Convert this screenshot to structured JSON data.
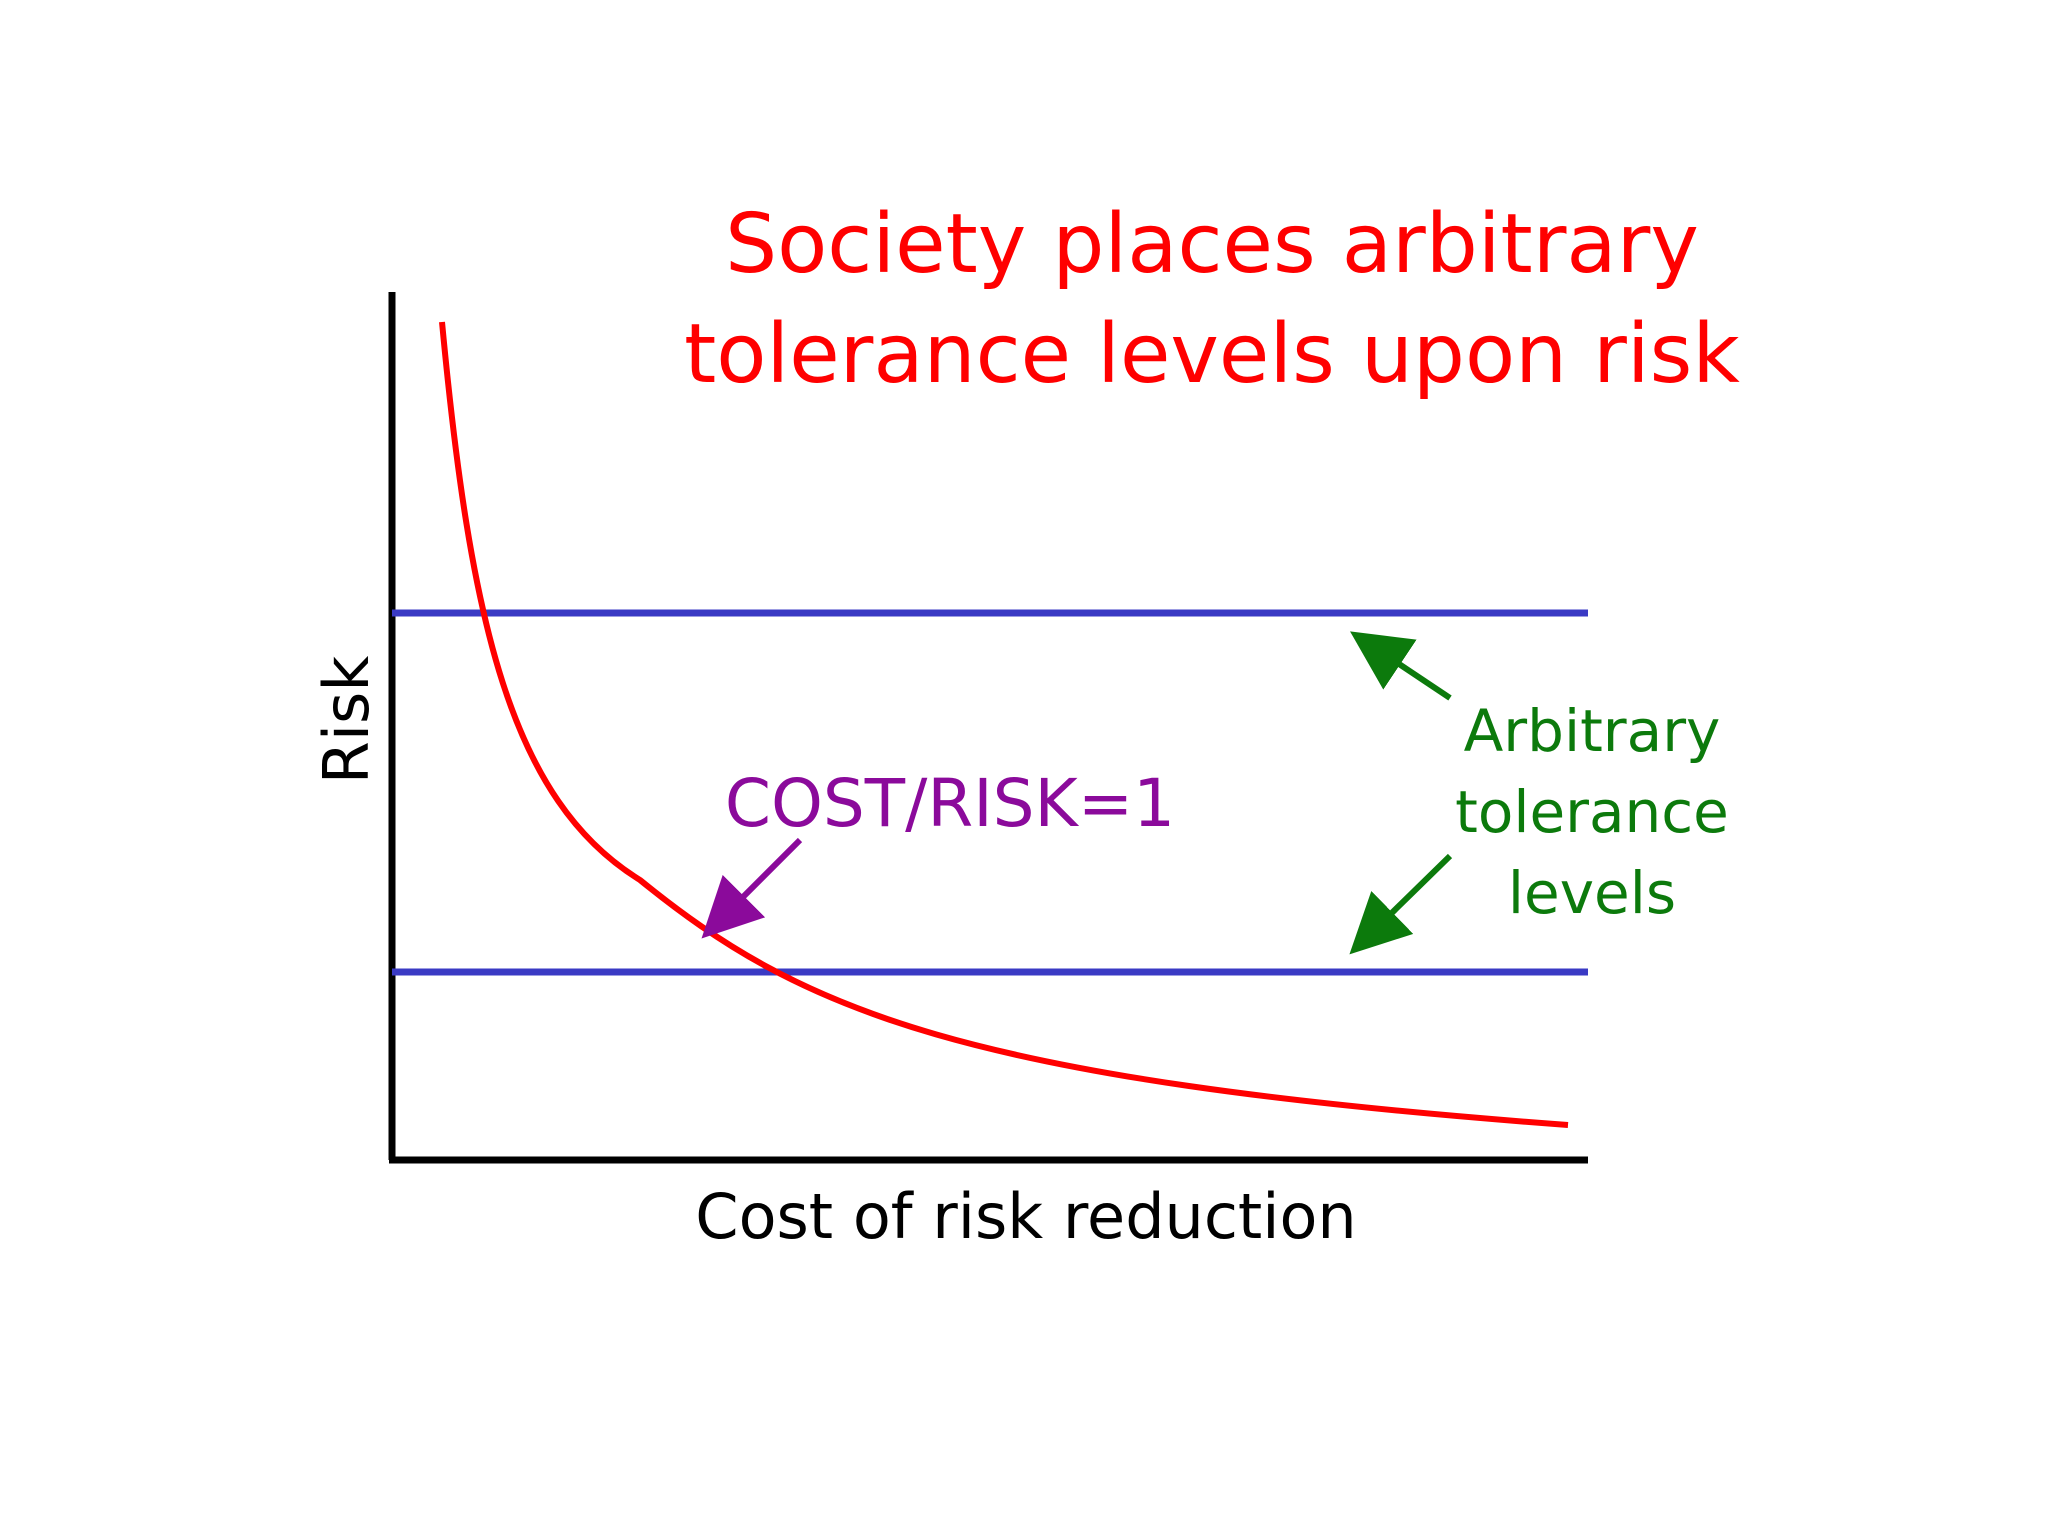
{
  "title": {
    "line1": "Society places arbitrary",
    "line2": "tolerance levels upon risk",
    "color": "#ff0000"
  },
  "axes": {
    "y_label": "Risk",
    "x_label": "Cost of risk reduction",
    "color": "#000000"
  },
  "curve": {
    "color": "#ff0000"
  },
  "tolerance_lines": {
    "color": "#3a3ac4"
  },
  "annotations": {
    "cost_risk": {
      "text": "COST/RISK=1",
      "color": "#8b0a9b"
    },
    "tolerance": {
      "line1": "Arbitrary",
      "line2": "tolerance",
      "line3": "levels",
      "color": "#0c7a0c"
    }
  }
}
